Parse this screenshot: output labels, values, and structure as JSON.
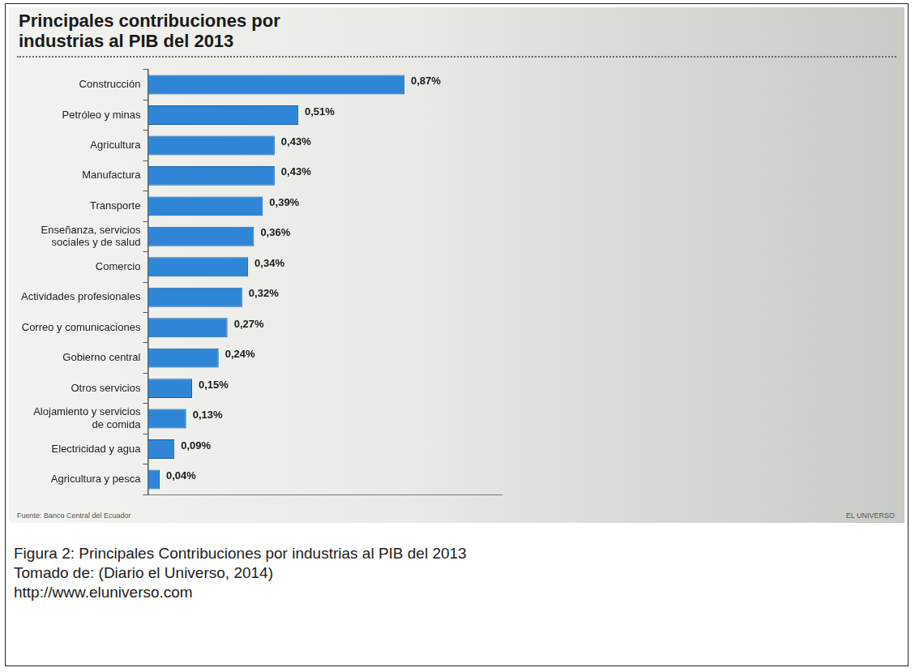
{
  "chart_data": {
    "type": "bar",
    "title": "Principales contribuciones por industrias al PIB del 2013",
    "orientation": "horizontal",
    "categories": [
      "Construcción",
      "Petróleo y minas",
      "Agricultura",
      "Manufactura",
      "Transporte",
      "Enseñanza, servicios sociales y de salud",
      "Comercio",
      "Actividades profesionales",
      "Correo y comunicaciones",
      "Gobierno central",
      "Otros servicios",
      "Alojamiento y servicios de comida",
      "Electricidad y agua",
      "Agricultura y pesca"
    ],
    "values": [
      0.87,
      0.51,
      0.43,
      0.43,
      0.39,
      0.36,
      0.34,
      0.32,
      0.27,
      0.24,
      0.15,
      0.13,
      0.09,
      0.04
    ],
    "value_labels": [
      "0,87%",
      "0,51%",
      "0,43%",
      "0,43%",
      "0,39%",
      "0,36%",
      "0,34%",
      "0,32%",
      "0,27%",
      "0,24%",
      "0,15%",
      "0,13%",
      "0,09%",
      "0,04%"
    ],
    "color": "#2f86d6",
    "xlim": [
      0,
      1.2
    ],
    "grid": false,
    "data_labels": true,
    "tick_labels": "y"
  },
  "footer": {
    "source": "Fuente: Banco Central del Ecuador",
    "credit": "EL UNIVERSO"
  },
  "caption": {
    "figure": "Figura 2: Principales Contribuciones por industrias al PIB del 2013",
    "reference": "Tomado de: (Diario el Universo, 2014)",
    "url": "http://www.eluniverso.com"
  }
}
